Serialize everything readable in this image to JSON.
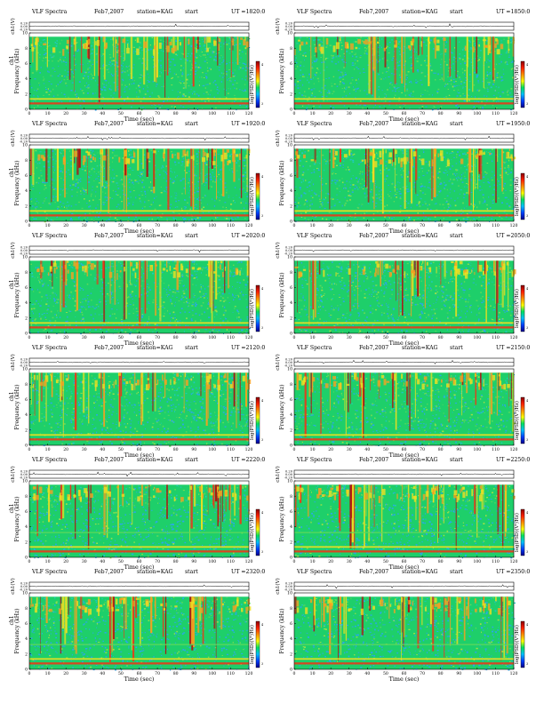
{
  "chart_data": [
    {
      "type": "heatmap",
      "title": "VLF Spectra",
      "date": "Feb7,2007",
      "station": "station=KAG",
      "start_label": "start",
      "ut": "UT =1820:0",
      "top_ylabel": "ch1(V)",
      "top_yticks": [
        "0.20",
        "0.00",
        "-0.20"
      ],
      "ylabel": "Frequency (kHz)",
      "ylabel_prefix": "ch1",
      "yticks": [
        "0",
        "2",
        "4",
        "6",
        "8",
        "10"
      ],
      "ylim": [
        0,
        10
      ],
      "xlabel": "Time (sec)",
      "xticks": [
        "0",
        "10",
        "20",
        "30",
        "40",
        "50",
        "60",
        "70",
        "80",
        "90",
        "100",
        "110",
        "120"
      ],
      "xlim": [
        0,
        120
      ],
      "colorbar_label": "log(PSD)(V²/Hz)",
      "colorbar_ticks": [
        "4",
        "3"
      ],
      "band_top_khz": 9.5
    },
    {
      "type": "heatmap",
      "title": "VLF Spectra",
      "date": "Feb7,2007",
      "station": "station=KAG",
      "start_label": "start",
      "ut": "UT =1850:0",
      "top_ylabel": "ch1(V)",
      "top_yticks": [
        "0.20",
        "0.00",
        "-0.20"
      ],
      "ylabel": "Frequency (kHz)",
      "ylabel_prefix": "",
      "yticks": [
        "0",
        "2",
        "4",
        "6",
        "8",
        "10"
      ],
      "ylim": [
        0,
        10
      ],
      "xlabel": "Time (sec)",
      "xticks": [
        "0",
        "10",
        "20",
        "30",
        "40",
        "50",
        "60",
        "70",
        "80",
        "90",
        "100",
        "110",
        "120"
      ],
      "xlim": [
        0,
        120
      ],
      "colorbar_label": "log(PSD)(V²/Hz)",
      "colorbar_ticks": [
        "4",
        "3"
      ],
      "band_top_khz": 9.5
    },
    {
      "type": "heatmap",
      "title": "VLF Spectra",
      "date": "Feb7,2007",
      "station": "station=KAG",
      "start_label": "start",
      "ut": "UT =1920:0",
      "top_ylabel": "ch1(V)",
      "top_yticks": [
        "0.20",
        "0.00",
        "-0.20"
      ],
      "ylabel": "Frequency (kHz)",
      "ylabel_prefix": "ch1",
      "yticks": [
        "0",
        "2",
        "4",
        "6",
        "8",
        "10"
      ],
      "ylim": [
        0,
        10
      ],
      "xlabel": "Time (sec)",
      "xticks": [
        "0",
        "10",
        "20",
        "30",
        "40",
        "50",
        "60",
        "70",
        "80",
        "90",
        "100",
        "110",
        "120"
      ],
      "xlim": [
        0,
        120
      ],
      "colorbar_label": "log(PSD)(V²/Hz)",
      "colorbar_ticks": [
        "4",
        "3"
      ],
      "band_top_khz": 9.5
    },
    {
      "type": "heatmap",
      "title": "VLF Spectra",
      "date": "Feb7,2007",
      "station": "station=KAG",
      "start_label": "start",
      "ut": "UT =1950:0",
      "top_ylabel": "ch1(V)",
      "top_yticks": [
        "0.20",
        "0.00",
        "-0.20"
      ],
      "ylabel": "Frequency (kHz)",
      "ylabel_prefix": "",
      "yticks": [
        "0",
        "2",
        "4",
        "6",
        "8",
        "10"
      ],
      "ylim": [
        0,
        10
      ],
      "xlabel": "Time (sec)",
      "xticks": [
        "0",
        "10",
        "20",
        "30",
        "40",
        "50",
        "60",
        "70",
        "80",
        "90",
        "100",
        "110",
        "120"
      ],
      "xlim": [
        0,
        120
      ],
      "colorbar_label": "log(PSD)(V²/Hz)",
      "colorbar_ticks": [
        "4",
        "3"
      ],
      "band_top_khz": 9.5
    },
    {
      "type": "heatmap",
      "title": "VLF Spectra",
      "date": "Feb7,2007",
      "station": "station=KAG",
      "start_label": "start",
      "ut": "UT =2020:0",
      "top_ylabel": "ch1(V)",
      "top_yticks": [
        "0.20",
        "0.00",
        "-0.20"
      ],
      "ylabel": "Frequency (kHz)",
      "ylabel_prefix": "ch1",
      "yticks": [
        "0",
        "2",
        "4",
        "6",
        "8",
        "10"
      ],
      "ylim": [
        0,
        10
      ],
      "xlabel": "Time (sec)",
      "xticks": [
        "0",
        "10",
        "20",
        "30",
        "40",
        "50",
        "60",
        "70",
        "80",
        "90",
        "100",
        "110",
        "120"
      ],
      "xlim": [
        0,
        120
      ],
      "colorbar_label": "log(PSD)(V²/Hz)",
      "colorbar_ticks": [
        "4",
        "3"
      ],
      "band_top_khz": 9.5
    },
    {
      "type": "heatmap",
      "title": "VLF Spectra",
      "date": "Feb7,2007",
      "station": "station=KAG",
      "start_label": "start",
      "ut": "UT =2050:0",
      "top_ylabel": "ch1(V)",
      "top_yticks": [
        "0.20",
        "0.00",
        "-0.20"
      ],
      "ylabel": "Frequency (kHz)",
      "ylabel_prefix": "",
      "yticks": [
        "0",
        "2",
        "4",
        "6",
        "8",
        "10"
      ],
      "ylim": [
        0,
        10
      ],
      "xlabel": "Time (sec)",
      "xticks": [
        "0",
        "10",
        "20",
        "30",
        "40",
        "50",
        "60",
        "70",
        "80",
        "90",
        "100",
        "110",
        "120"
      ],
      "xlim": [
        0,
        120
      ],
      "colorbar_label": "log(PSD)(V²/Hz)",
      "colorbar_ticks": [
        "4",
        "3"
      ],
      "band_top_khz": 9.5
    },
    {
      "type": "heatmap",
      "title": "VLF Spectra",
      "date": "Feb7,2007",
      "station": "station=KAG",
      "start_label": "start",
      "ut": "UT =2120:0",
      "top_ylabel": "ch1(V)",
      "top_yticks": [
        "0.20",
        "0.00",
        "-0.20"
      ],
      "ylabel": "Frequency (kHz)",
      "ylabel_prefix": "ch1",
      "yticks": [
        "0",
        "2",
        "4",
        "6",
        "8",
        "10"
      ],
      "ylim": [
        0,
        10
      ],
      "xlabel": "Time (sec)",
      "xticks": [
        "0",
        "10",
        "20",
        "30",
        "40",
        "50",
        "60",
        "70",
        "80",
        "90",
        "100",
        "110",
        "120"
      ],
      "xlim": [
        0,
        120
      ],
      "colorbar_label": "log(PSD)(V²/Hz)",
      "colorbar_ticks": [
        "4",
        "3"
      ],
      "band_top_khz": 9.5
    },
    {
      "type": "heatmap",
      "title": "VLF Spectra",
      "date": "Feb7,2007",
      "station": "station=KAG",
      "start_label": "start",
      "ut": "UT =2150:0",
      "top_ylabel": "ch1(V)",
      "top_yticks": [
        "0.20",
        "0.00",
        "-0.20"
      ],
      "ylabel": "Frequency (kHz)",
      "ylabel_prefix": "",
      "yticks": [
        "0",
        "2",
        "4",
        "6",
        "8",
        "10"
      ],
      "ylim": [
        0,
        10
      ],
      "xlabel": "Time (sec)",
      "xticks": [
        "0",
        "10",
        "20",
        "30",
        "40",
        "50",
        "60",
        "70",
        "80",
        "90",
        "100",
        "110",
        "120"
      ],
      "xlim": [
        0,
        120
      ],
      "colorbar_label": "log(PSD)(V²/Hz)",
      "colorbar_ticks": [
        "4",
        "3"
      ],
      "band_top_khz": 9.5
    },
    {
      "type": "heatmap",
      "title": "VLF Spectra",
      "date": "Feb7,2007",
      "station": "station=KAG",
      "start_label": "start",
      "ut": "UT =2220:0",
      "top_ylabel": "ch1(V)",
      "top_yticks": [
        "0.20",
        "0.00",
        "-0.20"
      ],
      "ylabel": "Frequency (kHz)",
      "ylabel_prefix": "ch1",
      "yticks": [
        "0",
        "2",
        "4",
        "6",
        "8",
        "10"
      ],
      "ylim": [
        0,
        10
      ],
      "xlabel": "Time (sec)",
      "xticks": [
        "0",
        "10",
        "20",
        "30",
        "40",
        "50",
        "60",
        "70",
        "80",
        "90",
        "100",
        "110",
        "120"
      ],
      "xlim": [
        0,
        120
      ],
      "colorbar_label": "log(PSD)(V²/Hz)",
      "colorbar_ticks": [
        "4",
        "3"
      ],
      "band_top_khz": 9.5
    },
    {
      "type": "heatmap",
      "title": "VLF Spectra",
      "date": "Feb7,2007",
      "station": "station=KAG",
      "start_label": "start",
      "ut": "UT =2250:0",
      "top_ylabel": "ch1(V)",
      "top_yticks": [
        "0.20",
        "0.00",
        "-0.20"
      ],
      "ylabel": "Frequency (kHz)",
      "ylabel_prefix": "",
      "yticks": [
        "0",
        "2",
        "4",
        "6",
        "8",
        "10"
      ],
      "ylim": [
        0,
        10
      ],
      "xlabel": "Time (sec)",
      "xticks": [
        "0",
        "10",
        "20",
        "30",
        "40",
        "50",
        "60",
        "70",
        "80",
        "90",
        "100",
        "110",
        "120"
      ],
      "xlim": [
        0,
        120
      ],
      "colorbar_label": "log(PSD)(V²/Hz)",
      "colorbar_ticks": [
        "4",
        "3"
      ],
      "band_top_khz": 9.5
    },
    {
      "type": "heatmap",
      "title": "VLF Spectra",
      "date": "Feb7,2007",
      "station": "station=KAG",
      "start_label": "start",
      "ut": "UT =2320:0",
      "top_ylabel": "ch1(V)",
      "top_yticks": [
        "0.20",
        "0.00",
        "-0.20"
      ],
      "ylabel": "Frequency (kHz)",
      "ylabel_prefix": "ch1",
      "yticks": [
        "0",
        "2",
        "4",
        "6",
        "8",
        "10"
      ],
      "ylim": [
        0,
        10
      ],
      "xlabel": "Time (sec)",
      "xticks": [
        "0",
        "10",
        "20",
        "30",
        "40",
        "50",
        "60",
        "70",
        "80",
        "90",
        "100",
        "110",
        "120"
      ],
      "xlim": [
        0,
        120
      ],
      "colorbar_label": "log(PSD)(V²/Hz)",
      "colorbar_ticks": [
        "4",
        "3"
      ],
      "band_top_khz": 9.5
    },
    {
      "type": "heatmap",
      "title": "VLF Spectra",
      "date": "Feb7,2007",
      "station": "station=KAG",
      "start_label": "start",
      "ut": "UT =2350:0",
      "top_ylabel": "ch1(V)",
      "top_yticks": [
        "0.20",
        "0.00",
        "-0.20"
      ],
      "ylabel": "Frequency (kHz)",
      "ylabel_prefix": "",
      "yticks": [
        "0",
        "2",
        "4",
        "6",
        "8",
        "10"
      ],
      "ylim": [
        0,
        10
      ],
      "xlabel": "Time (sec)",
      "xticks": [
        "0",
        "10",
        "20",
        "30",
        "40",
        "50",
        "60",
        "70",
        "80",
        "90",
        "100",
        "110",
        "120"
      ],
      "xlim": [
        0,
        120
      ],
      "colorbar_label": "log(PSD)(V²/Hz)",
      "colorbar_ticks": [
        "4",
        "3"
      ],
      "band_top_khz": 9.5
    }
  ],
  "colors": {
    "background": "#1ecf6a",
    "noise": [
      "#1ecf6a",
      "#22c9c0",
      "#2aa8e8",
      "#5fd85a",
      "#9be04a"
    ],
    "burst": [
      "#f0e020",
      "#f7a020",
      "#e83a1a",
      "#b01010"
    ],
    "band": [
      "#e83a1a",
      "#f0e020"
    ],
    "colorbar": [
      "#8b0000",
      "#ff2000",
      "#ff9000",
      "#ffff00",
      "#00e060",
      "#00c0ff",
      "#0040ff",
      "#00008b"
    ]
  }
}
